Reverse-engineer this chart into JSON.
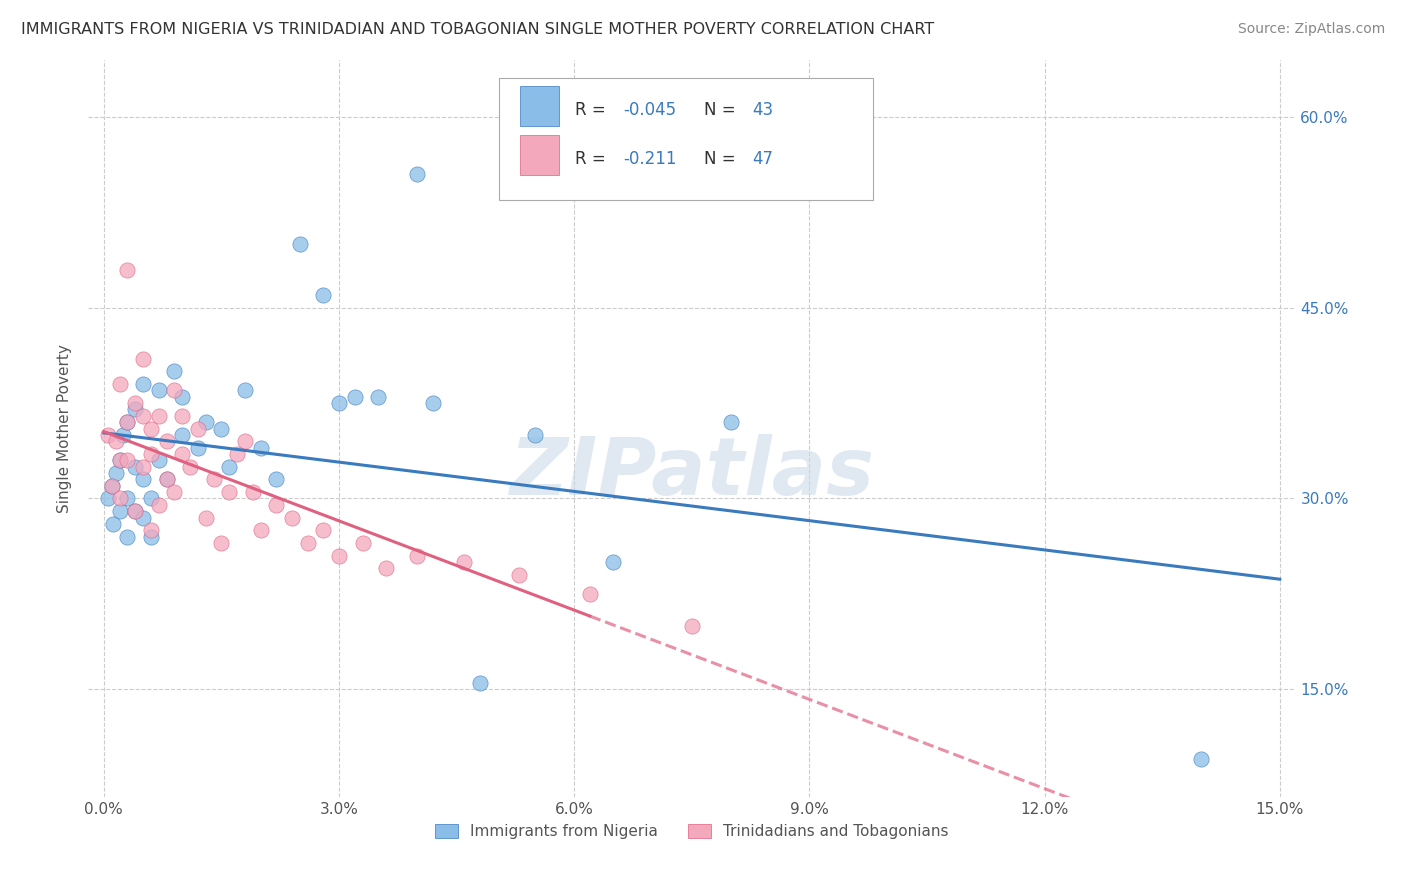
{
  "title": "IMMIGRANTS FROM NIGERIA VS TRINIDADIAN AND TOBAGONIAN SINGLE MOTHER POVERTY CORRELATION CHART",
  "source": "Source: ZipAtlas.com",
  "ylabel": "Single Mother Poverty",
  "legend_label1": "Immigrants from Nigeria",
  "legend_label2": "Trinidadians and Tobagonians",
  "R1": -0.045,
  "N1": 43,
  "R2": -0.211,
  "N2": 47,
  "color1": "#8abde8",
  "color2": "#f4a8bc",
  "trend1_color": "#3a7abf",
  "trend2_color": "#e06080",
  "xlim": [
    -0.002,
    0.152
  ],
  "ylim": [
    0.065,
    0.645
  ],
  "yticks": [
    0.15,
    0.3,
    0.45,
    0.6
  ],
  "ytick_labels": [
    "15.0%",
    "30.0%",
    "45.0%",
    "60.0%"
  ],
  "xticks": [
    0.0,
    0.03,
    0.06,
    0.09,
    0.12,
    0.15
  ],
  "xtick_labels": [
    "0.0%",
    "3.0%",
    "6.0%",
    "9.0%",
    "12.0%",
    "15.0%"
  ],
  "watermark": "ZIPatlas",
  "grid_color": "#cccccc",
  "background_color": "#ffffff",
  "nigeria_x": [
    0.0005,
    0.001,
    0.0012,
    0.0015,
    0.002,
    0.002,
    0.0025,
    0.003,
    0.003,
    0.003,
    0.004,
    0.004,
    0.004,
    0.005,
    0.005,
    0.005,
    0.006,
    0.006,
    0.007,
    0.007,
    0.008,
    0.009,
    0.01,
    0.01,
    0.012,
    0.013,
    0.015,
    0.016,
    0.018,
    0.02,
    0.022,
    0.025,
    0.028,
    0.03,
    0.032,
    0.035,
    0.04,
    0.042,
    0.048,
    0.055,
    0.065,
    0.08,
    0.14
  ],
  "nigeria_y": [
    0.3,
    0.31,
    0.28,
    0.32,
    0.33,
    0.29,
    0.35,
    0.3,
    0.27,
    0.36,
    0.29,
    0.325,
    0.37,
    0.285,
    0.315,
    0.39,
    0.3,
    0.27,
    0.385,
    0.33,
    0.315,
    0.4,
    0.38,
    0.35,
    0.34,
    0.36,
    0.355,
    0.325,
    0.385,
    0.34,
    0.315,
    0.5,
    0.46,
    0.375,
    0.38,
    0.38,
    0.555,
    0.375,
    0.155,
    0.35,
    0.25,
    0.36,
    0.095
  ],
  "trini_x": [
    0.0005,
    0.001,
    0.0015,
    0.002,
    0.002,
    0.002,
    0.003,
    0.003,
    0.003,
    0.004,
    0.004,
    0.005,
    0.005,
    0.005,
    0.006,
    0.006,
    0.006,
    0.007,
    0.007,
    0.008,
    0.008,
    0.009,
    0.009,
    0.01,
    0.01,
    0.011,
    0.012,
    0.013,
    0.014,
    0.015,
    0.016,
    0.017,
    0.018,
    0.019,
    0.02,
    0.022,
    0.024,
    0.026,
    0.028,
    0.03,
    0.033,
    0.036,
    0.04,
    0.046,
    0.053,
    0.062,
    0.075
  ],
  "trini_y": [
    0.35,
    0.31,
    0.345,
    0.33,
    0.39,
    0.3,
    0.36,
    0.33,
    0.48,
    0.375,
    0.29,
    0.365,
    0.325,
    0.41,
    0.355,
    0.275,
    0.335,
    0.365,
    0.295,
    0.345,
    0.315,
    0.385,
    0.305,
    0.335,
    0.365,
    0.325,
    0.355,
    0.285,
    0.315,
    0.265,
    0.305,
    0.335,
    0.345,
    0.305,
    0.275,
    0.295,
    0.285,
    0.265,
    0.275,
    0.255,
    0.265,
    0.245,
    0.255,
    0.25,
    0.24,
    0.225,
    0.2
  ]
}
